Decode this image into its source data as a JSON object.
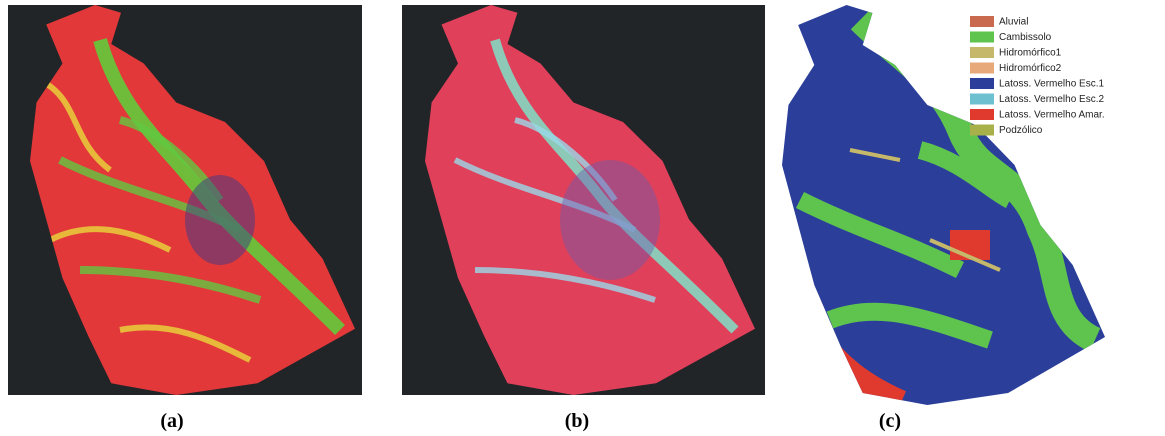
{
  "panels": [
    {
      "label": "(a)"
    },
    {
      "label": "(b)"
    },
    {
      "label": "(c)"
    }
  ],
  "legend": [
    {
      "name": "Aluvial",
      "color": "#c96a4e"
    },
    {
      "name": "Cambissolo",
      "color": "#5fc44e"
    },
    {
      "name": "Hidromórfico1",
      "color": "#c6b86a"
    },
    {
      "name": "Hidromórfico2",
      "color": "#e8a97a"
    },
    {
      "name": "Latoss. Vermelho Esc.1",
      "color": "#2b3f9a"
    },
    {
      "name": "Latoss. Vermelho Esc.2",
      "color": "#6cc0d0"
    },
    {
      "name": "Latoss. Vermelho Amar.",
      "color": "#e03a2e"
    },
    {
      "name": "Podzólico",
      "color": "#a8b04a"
    }
  ]
}
